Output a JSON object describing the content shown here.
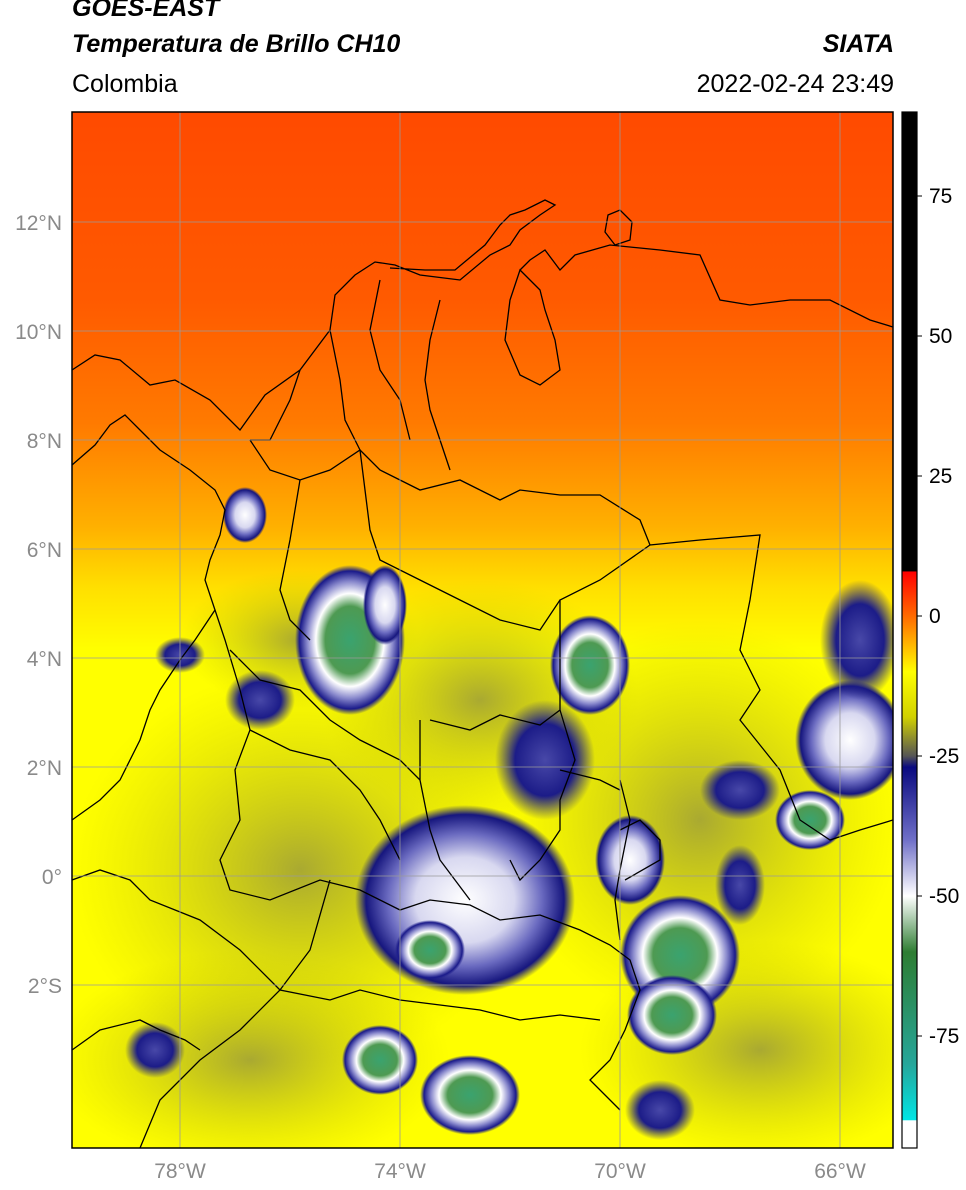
{
  "header": {
    "satellite": "GOES-EAST",
    "product": "Temperatura de Brillo CH10",
    "region": "Colombia",
    "source": "SIATA",
    "datetime": "2022-02-24 23:49"
  },
  "map": {
    "lon_range": [
      -80,
      -65
    ],
    "lat_range": [
      -5,
      14
    ],
    "lat_ticks": [
      {
        "value": 12,
        "label": "12°N"
      },
      {
        "value": 10,
        "label": "10°N"
      },
      {
        "value": 8,
        "label": "8°N"
      },
      {
        "value": 6,
        "label": "6°N"
      },
      {
        "value": 4,
        "label": "4°N"
      },
      {
        "value": 2,
        "label": "2°N"
      },
      {
        "value": 0,
        "label": "0°"
      },
      {
        "value": -2,
        "label": "2°S"
      }
    ],
    "lon_ticks": [
      {
        "value": -78,
        "label": "78°W"
      },
      {
        "value": -74,
        "label": "74°W"
      },
      {
        "value": -70,
        "label": "70°W"
      },
      {
        "value": -66,
        "label": "66°W"
      }
    ],
    "grid": true
  },
  "colorbar": {
    "range": [
      -95,
      90
    ],
    "ticks": [
      {
        "value": 75,
        "label": "75"
      },
      {
        "value": 50,
        "label": "50"
      },
      {
        "value": 25,
        "label": "25"
      },
      {
        "value": 0,
        "label": "0"
      },
      {
        "value": -25,
        "label": "-25"
      },
      {
        "value": -50,
        "label": "-50"
      },
      {
        "value": -75,
        "label": "-75"
      }
    ],
    "stops": [
      {
        "value": 90,
        "color": "#000000"
      },
      {
        "value": 8,
        "color": "#000000"
      },
      {
        "value": 7.9,
        "color": "#ff0000"
      },
      {
        "value": 0,
        "color": "#ff6a00"
      },
      {
        "value": -10,
        "color": "#ffff00"
      },
      {
        "value": -18,
        "color": "#d2d200"
      },
      {
        "value": -25,
        "color": "#555555"
      },
      {
        "value": -27,
        "color": "#0a0a80"
      },
      {
        "value": -40,
        "color": "#7070c8"
      },
      {
        "value": -50,
        "color": "#ffffff"
      },
      {
        "value": -60,
        "color": "#2e7d32"
      },
      {
        "value": -80,
        "color": "#26a69a"
      },
      {
        "value": -90,
        "color": "#00e5e5"
      },
      {
        "value": -90.1,
        "color": "#ffffff"
      },
      {
        "value": -95,
        "color": "#ffffff"
      }
    ]
  }
}
